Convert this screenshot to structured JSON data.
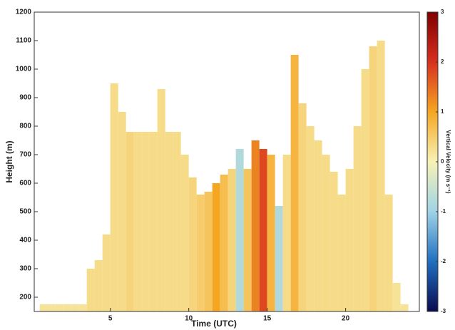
{
  "chart_data": {
    "type": "heatmap",
    "xlabel": "Time (UTC)",
    "ylabel": "Height (m)",
    "colorbar_label": "Vertical Velocity (m s⁻¹)",
    "xbins": [
      0.5,
      1,
      1.5,
      2,
      2.5,
      3,
      3.5,
      4,
      4.5,
      5,
      5.5,
      6,
      6.5,
      7,
      7.5,
      8,
      8.5,
      9,
      9.5,
      10,
      10.5,
      11,
      11.5,
      12,
      12.5,
      13,
      13.5,
      14,
      14.5,
      15,
      15.5,
      16,
      16.5,
      17,
      17.5,
      18,
      18.5,
      19,
      19.5,
      20,
      20.5,
      21,
      21.5,
      22,
      22.5,
      23,
      23.5,
      24
    ],
    "tops": [
      175,
      175,
      175,
      175,
      175,
      175,
      300,
      330,
      420,
      950,
      850,
      780,
      780,
      780,
      780,
      930,
      780,
      780,
      700,
      620,
      560,
      570,
      600,
      630,
      650,
      720,
      650,
      750,
      720,
      700,
      520,
      700,
      1050,
      880,
      800,
      750,
      700,
      640,
      560,
      650,
      800,
      1000,
      1080,
      1100,
      560,
      250,
      175
    ],
    "values": [
      0.2,
      0.2,
      0.2,
      0.2,
      0.2,
      0.2,
      0.3,
      0.3,
      0.3,
      0.3,
      0.3,
      0.4,
      0.3,
      0.3,
      0.3,
      0.3,
      0.3,
      0.3,
      0.3,
      0.4,
      0.5,
      0.6,
      1.0,
      0.7,
      0.4,
      -0.8,
      0.6,
      1.3,
      1.8,
      0.8,
      -0.8,
      0.3,
      0.8,
      0.4,
      0.3,
      0.3,
      0.3,
      0.3,
      0.3,
      0.3,
      0.3,
      0.3,
      0.4,
      0.3,
      0.3,
      0.2,
      0.2
    ],
    "xlim": [
      0.15,
      24.7
    ],
    "xticks": [
      5,
      10,
      15,
      20
    ],
    "ylim": [
      150,
      1200
    ],
    "yticks": [
      200,
      300,
      400,
      500,
      600,
      700,
      800,
      900,
      1000,
      1100,
      1200
    ],
    "clim": [
      -3,
      3
    ],
    "cticks": [
      -3,
      -2,
      -1,
      0,
      1,
      2,
      3
    ],
    "colors": [
      "#0b0b50",
      "#1f6fc0",
      "#9fd3e6",
      "#f7f2b5",
      "#f5a623",
      "#d7301f",
      "#7f0000"
    ]
  }
}
